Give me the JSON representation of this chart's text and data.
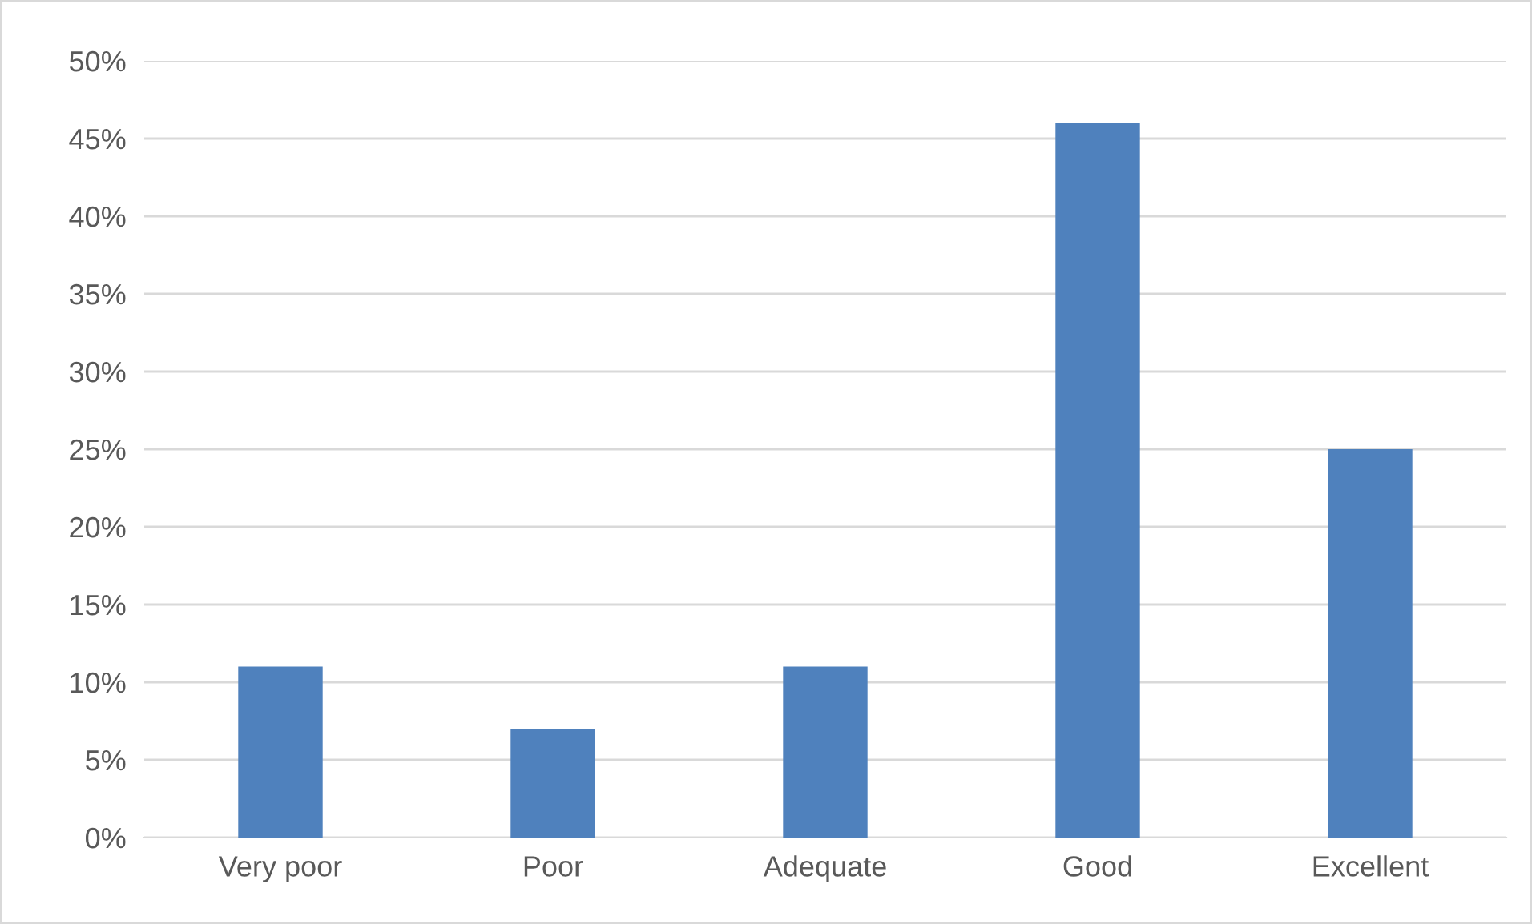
{
  "chart_data": {
    "type": "bar",
    "categories": [
      "Very poor",
      "Poor",
      "Adequate",
      "Good",
      "Excellent"
    ],
    "values": [
      11,
      7,
      11,
      46,
      25
    ],
    "color": "#4f81bd",
    "ylim": [
      0,
      50
    ],
    "yticks": [
      {
        "value": 0,
        "label": "0%"
      },
      {
        "value": 5,
        "label": "5%"
      },
      {
        "value": 10,
        "label": "10%"
      },
      {
        "value": 15,
        "label": "15%"
      },
      {
        "value": 20,
        "label": "20%"
      },
      {
        "value": 25,
        "label": "25%"
      },
      {
        "value": 30,
        "label": "30%"
      },
      {
        "value": 35,
        "label": "35%"
      },
      {
        "value": 40,
        "label": "40%"
      },
      {
        "value": 45,
        "label": "45%"
      },
      {
        "value": 50,
        "label": "50%"
      }
    ],
    "grid": "y",
    "legend": false
  }
}
